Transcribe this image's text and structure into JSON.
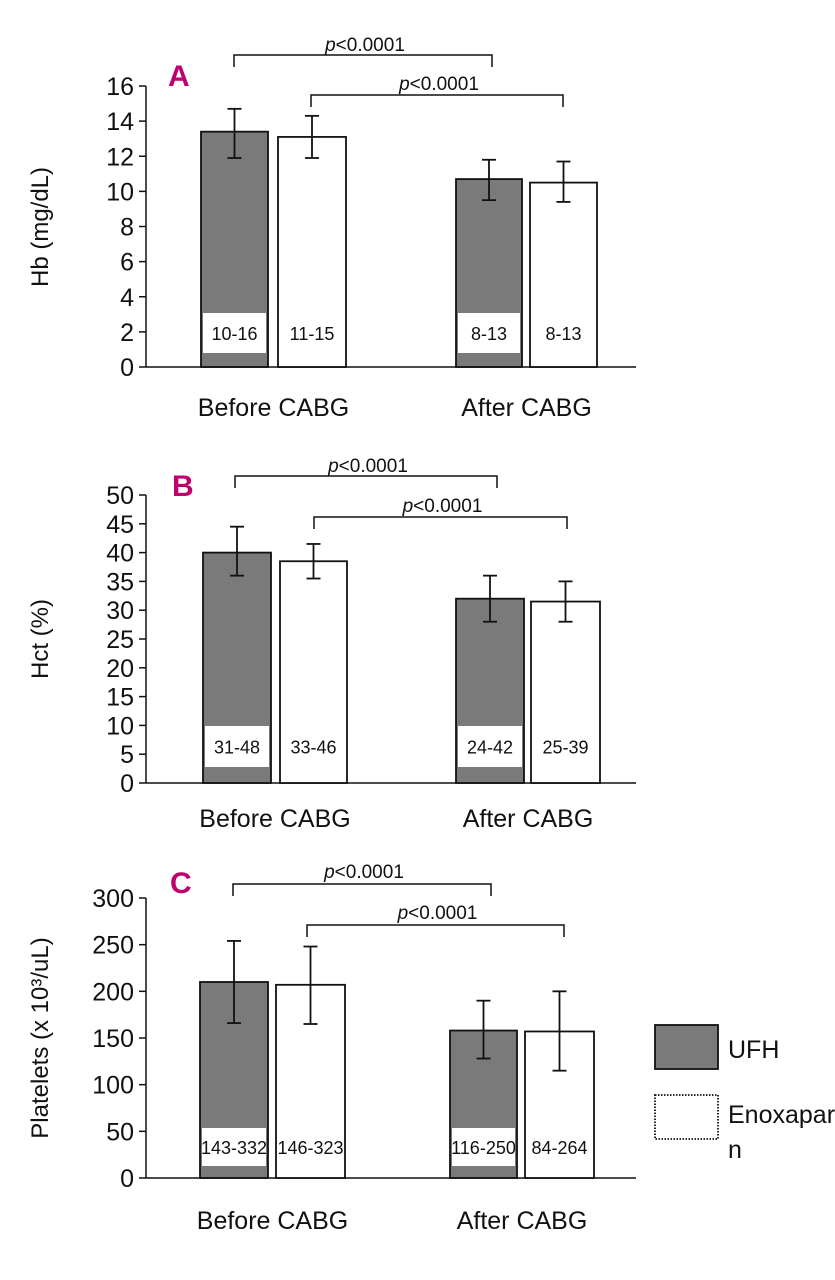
{
  "colors": {
    "ufh": "#7a7a7a",
    "enox": "#ffffff",
    "accent": "#c0006f",
    "stroke": "#111111"
  },
  "legend": [
    {
      "name": "UFH",
      "color": "#7a7a7a"
    },
    {
      "name": "Enoxaparin",
      "line1": "Enoxapari",
      "line2": "n",
      "color": "#ffffff"
    }
  ],
  "chart_data": [
    {
      "type": "bar",
      "panel": "A",
      "ylabel": "Hb (mg/dL)",
      "ylim": [
        0,
        16
      ],
      "yticks": [
        0,
        2,
        4,
        6,
        8,
        10,
        12,
        14,
        16
      ],
      "categories": [
        "Before CABG",
        "After CABG"
      ],
      "series": [
        {
          "name": "UFH",
          "values": [
            13.4,
            10.7
          ],
          "err_low": [
            11.9,
            9.5
          ],
          "err_high": [
            14.7,
            11.8
          ],
          "ranges": [
            "10-16",
            "8-13"
          ]
        },
        {
          "name": "Enoxaparin",
          "values": [
            13.1,
            10.5
          ],
          "err_low": [
            11.9,
            9.4
          ],
          "err_high": [
            14.3,
            11.7
          ],
          "ranges": [
            "11-15",
            "8-13"
          ]
        }
      ],
      "comparisons": [
        {
          "label": "p<0.0001",
          "p_italic": "p",
          "p_rest": "<0.0001",
          "series": "UFH"
        },
        {
          "label": "p<0.0001",
          "p_italic": "p",
          "p_rest": "<0.0001",
          "series": "Enoxaparin"
        }
      ]
    },
    {
      "type": "bar",
      "panel": "B",
      "ylabel": "Hct (%)",
      "ylim": [
        0,
        50
      ],
      "yticks": [
        0,
        5,
        10,
        15,
        20,
        25,
        30,
        35,
        40,
        45,
        50
      ],
      "categories": [
        "Before CABG",
        "After CABG"
      ],
      "series": [
        {
          "name": "UFH",
          "values": [
            40,
            32
          ],
          "err_low": [
            36,
            28
          ],
          "err_high": [
            44.5,
            36
          ],
          "ranges": [
            "31-48",
            "24-42"
          ]
        },
        {
          "name": "Enoxaparin",
          "values": [
            38.5,
            31.5
          ],
          "err_low": [
            35.5,
            28
          ],
          "err_high": [
            41.5,
            35
          ],
          "ranges": [
            "33-46",
            "25-39"
          ]
        }
      ],
      "comparisons": [
        {
          "label": "p<0.0001",
          "p_italic": "p",
          "p_rest": "<0.0001",
          "series": "UFH"
        },
        {
          "label": "p<0.0001",
          "p_italic": "p",
          "p_rest": "<0.0001",
          "series": "Enoxaparin"
        }
      ]
    },
    {
      "type": "bar",
      "panel": "C",
      "ylabel": "Platelets (x 10³/uL)",
      "ylim": [
        0,
        300
      ],
      "yticks": [
        0,
        50,
        100,
        150,
        200,
        250,
        300
      ],
      "categories": [
        "Before CABG",
        "After CABG"
      ],
      "series": [
        {
          "name": "UFH",
          "values": [
            210,
            158
          ],
          "err_low": [
            166,
            128
          ],
          "err_high": [
            254,
            190
          ],
          "ranges": [
            "143-332",
            "116-250"
          ]
        },
        {
          "name": "Enoxaparin",
          "values": [
            207,
            157
          ],
          "err_low": [
            165,
            115
          ],
          "err_high": [
            248,
            200
          ],
          "ranges": [
            "146-323",
            "84-264"
          ]
        }
      ],
      "comparisons": [
        {
          "label": "p<0.0001",
          "p_italic": "p",
          "p_rest": "<0.0001",
          "series": "UFH"
        },
        {
          "label": "p<0.0001",
          "p_italic": "p",
          "p_rest": "<0.0001",
          "series": "Enoxaparin"
        }
      ]
    }
  ]
}
